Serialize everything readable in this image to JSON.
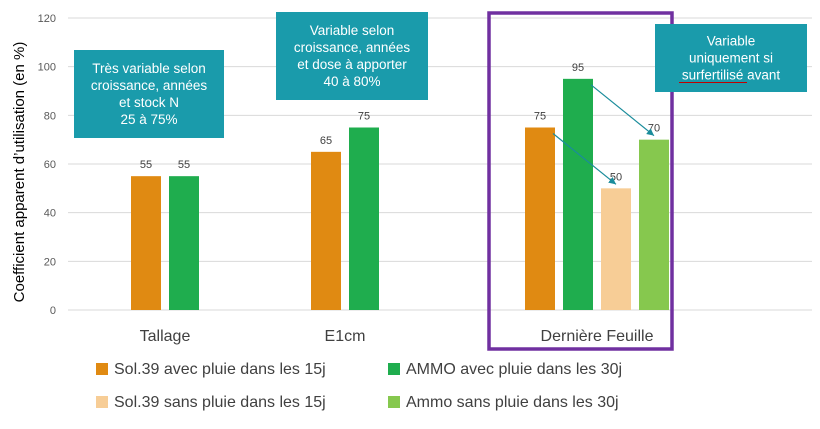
{
  "chart_data": {
    "type": "bar",
    "ylabel": "Coefficient apparent d’utilisation (en %)",
    "ylim": [
      0,
      120
    ],
    "yticks": [
      0,
      20,
      40,
      60,
      80,
      100,
      120
    ],
    "grid": true,
    "categories": [
      "Tallage",
      "E1cm",
      "Dernière Feuille"
    ],
    "series": [
      {
        "name": "Sol.39 avec pluie dans les 15j",
        "color": "#E08A12",
        "values": [
          55,
          65,
          75
        ]
      },
      {
        "name": "AMMO avec pluie dans les 30j",
        "color": "#1FAD4E",
        "values": [
          55,
          75,
          95
        ]
      },
      {
        "name": "Sol.39 sans pluie dans les 15j",
        "color": "#F7CD96",
        "values": [
          null,
          null,
          50
        ]
      },
      {
        "name": "Ammo sans pluie dans les 30j",
        "color": "#86C84E",
        "values": [
          null,
          null,
          70
        ]
      }
    ],
    "legend_position": "bottom",
    "annotations": [
      {
        "category": "Tallage",
        "lines": [
          "Très variable selon",
          "croissance, années",
          "et stock N",
          "25 à 75%"
        ]
      },
      {
        "category": "E1cm",
        "lines": [
          "Variable selon",
          "croissance, années",
          "et dose à apporter",
          "40 à 80%"
        ]
      },
      {
        "category": "Dernière Feuille",
        "lines": [
          "Variable",
          "uniquement si",
          "surfertilisé avant"
        ]
      }
    ],
    "highlight": {
      "category": "Dernière Feuille",
      "color": "#7030A0"
    },
    "arrows": [
      {
        "from_series": 0,
        "to_series": 2,
        "category": "Dernière Feuille"
      },
      {
        "from_series": 1,
        "to_series": 3,
        "category": "Dernière Feuille"
      }
    ],
    "colors": {
      "callout_bg": "#1A9BAB",
      "callout_text": "#FFFFFF",
      "grid": "#D9D9D9",
      "arrow": "#1A8C9B",
      "text": "#404040"
    }
  }
}
